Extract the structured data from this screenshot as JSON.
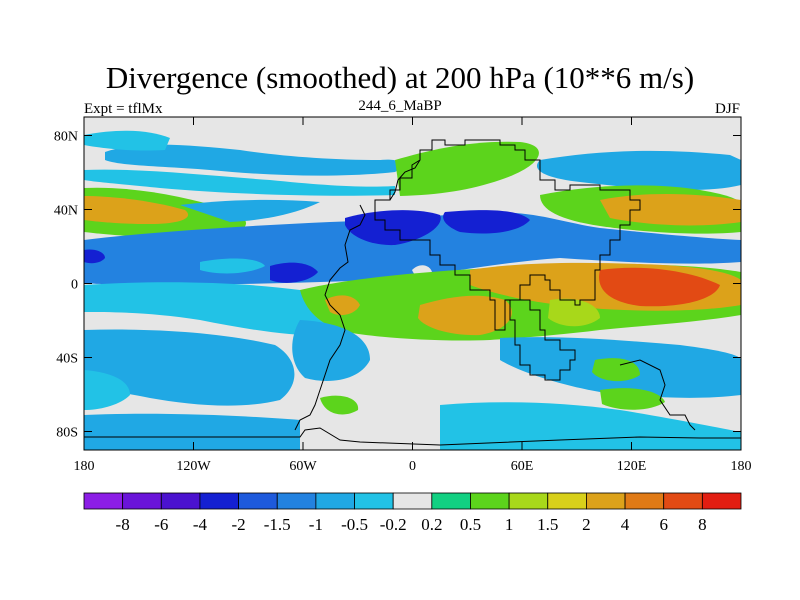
{
  "chart_data": {
    "type": "heatmap",
    "title": "Divergence (smoothed) at 200 hPa (10**6 m/s)",
    "subtitle_left": "Expt = tflMx",
    "subtitle_center": "244_6_MaBP",
    "subtitle_right": "DJF",
    "x_ticks": [
      "180",
      "120W",
      "60W",
      "0",
      "60E",
      "120E",
      "180"
    ],
    "x_tick_values": [
      -180,
      -120,
      -60,
      0,
      60,
      120,
      180
    ],
    "y_ticks": [
      "80N",
      "40N",
      "0",
      "40S",
      "80S"
    ],
    "y_tick_values": [
      80,
      40,
      0,
      -40,
      -80
    ],
    "xlim": [
      -180,
      180
    ],
    "ylim": [
      -90,
      90
    ],
    "colorbar": {
      "colors": [
        "#8c1ee6",
        "#6a14d9",
        "#4b12cf",
        "#1420d2",
        "#1e5adc",
        "#2382e0",
        "#20a8e4",
        "#22c2e6",
        "#e6e6e6",
        "#12d082",
        "#5cd41c",
        "#a8d81a",
        "#d8d01a",
        "#dca21a",
        "#e07a16",
        "#e24a14",
        "#e21e12"
      ],
      "labels": [
        "-8",
        "-6",
        "-4",
        "-2",
        "-1.5",
        "-1",
        "-0.5",
        "-0.2",
        "0.2",
        "0.5",
        "1",
        "1.5",
        "2",
        "4",
        "6",
        "8"
      ]
    },
    "regions": [
      {
        "level": -0.5,
        "lon": [
          -165,
          -60
        ],
        "lat": [
          54,
          68
        ]
      },
      {
        "level": -1,
        "lon": [
          -170,
          -150
        ],
        "lat": [
          -10,
          10
        ]
      },
      {
        "level": -1,
        "lon": [
          -75,
          -20
        ],
        "lat": [
          20,
          45
        ]
      },
      {
        "level": -2,
        "lon": [
          -40,
          10
        ],
        "lat": [
          25,
          40
        ]
      },
      {
        "level": -1.5,
        "lon": [
          -150,
          -100
        ],
        "lat": [
          -5,
          15
        ]
      },
      {
        "level": 0.5,
        "lon": [
          -180,
          -100
        ],
        "lat": [
          45,
          60
        ]
      },
      {
        "level": 2,
        "lon": [
          40,
          110
        ],
        "lat": [
          -10,
          5
        ]
      },
      {
        "level": 6,
        "lon": [
          115,
          150
        ],
        "lat": [
          -10,
          5
        ]
      },
      {
        "level": 2,
        "lon": [
          130,
          170
        ],
        "lat": [
          35,
          50
        ]
      },
      {
        "level": 2,
        "lon": [
          -180,
          -165
        ],
        "lat": [
          35,
          45
        ]
      },
      {
        "level": 2,
        "lon": [
          40,
          60
        ],
        "lat": [
          -25,
          -10
        ]
      },
      {
        "level": -0.5,
        "lon": [
          -155,
          -55
        ],
        "lat": [
          -55,
          -25
        ]
      },
      {
        "level": -0.5,
        "lon": [
          100,
          160
        ],
        "lat": [
          -75,
          -50
        ]
      }
    ],
    "annotations": []
  }
}
